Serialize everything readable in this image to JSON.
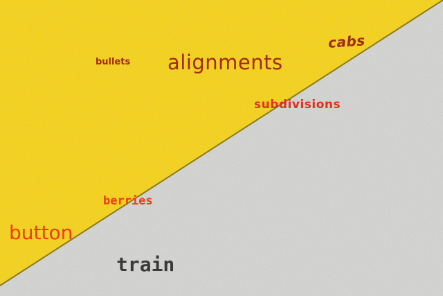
{
  "colors": {
    "yellow": "#f5d320",
    "concrete": "#d4d4d2",
    "edge": "#8a7a20",
    "dark_red": "#a12a10",
    "red": "#e0301a",
    "orange_red": "#ef3a17",
    "charcoal": "#3a3a3a"
  },
  "words": {
    "cabs": "cabs",
    "bullets": "bullets",
    "alignments": "alignments",
    "subdivisions": "subdivisions",
    "berries": "berries",
    "button": "button",
    "train": "train"
  }
}
